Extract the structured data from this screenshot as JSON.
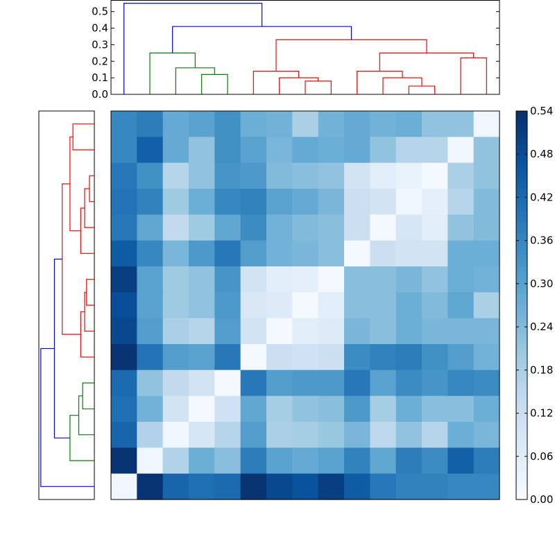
{
  "chart_data": [
    {
      "type": "heatmap",
      "colormap": "Blues",
      "colorbar": {
        "range": [
          0.0,
          0.54
        ],
        "tick_labels": [
          "0.00",
          "0.06",
          "0.12",
          "0.18",
          "0.24",
          "0.30",
          "0.36",
          "0.42",
          "0.48",
          "0.54"
        ],
        "ticks": [
          0.0,
          0.06,
          0.12,
          0.18,
          0.24,
          0.3,
          0.36,
          0.42,
          0.48,
          0.54
        ]
      },
      "grid": false,
      "rows_top_to_bottom": 15,
      "cols_left_to_right": 15,
      "values": [
        [
          0.36,
          0.38,
          0.28,
          0.3,
          0.34,
          0.27,
          0.26,
          0.18,
          0.26,
          0.28,
          0.26,
          0.27,
          0.22,
          0.22,
          0.02
        ],
        [
          0.36,
          0.44,
          0.28,
          0.22,
          0.34,
          0.3,
          0.25,
          0.28,
          0.27,
          0.28,
          0.22,
          0.16,
          0.16,
          0.02,
          0.22
        ],
        [
          0.39,
          0.34,
          0.16,
          0.22,
          0.33,
          0.32,
          0.24,
          0.23,
          0.22,
          0.1,
          0.06,
          0.04,
          0.01,
          0.18,
          0.22
        ],
        [
          0.4,
          0.37,
          0.2,
          0.27,
          0.36,
          0.37,
          0.3,
          0.28,
          0.25,
          0.12,
          0.1,
          0.02,
          0.05,
          0.16,
          0.24
        ],
        [
          0.39,
          0.29,
          0.14,
          0.2,
          0.29,
          0.35,
          0.26,
          0.24,
          0.23,
          0.12,
          0.01,
          0.09,
          0.06,
          0.22,
          0.24
        ],
        [
          0.45,
          0.36,
          0.25,
          0.32,
          0.39,
          0.31,
          0.26,
          0.25,
          0.23,
          0.01,
          0.12,
          0.1,
          0.1,
          0.27,
          0.27
        ],
        [
          0.51,
          0.3,
          0.2,
          0.22,
          0.33,
          0.1,
          0.06,
          0.05,
          0.01,
          0.23,
          0.23,
          0.25,
          0.22,
          0.27,
          0.26
        ],
        [
          0.48,
          0.3,
          0.2,
          0.22,
          0.32,
          0.08,
          0.07,
          0.01,
          0.06,
          0.23,
          0.23,
          0.27,
          0.24,
          0.29,
          0.18
        ],
        [
          0.49,
          0.31,
          0.18,
          0.16,
          0.31,
          0.1,
          0.01,
          0.06,
          0.07,
          0.25,
          0.23,
          0.27,
          0.25,
          0.25,
          0.25
        ],
        [
          0.53,
          0.4,
          0.31,
          0.3,
          0.39,
          0.01,
          0.12,
          0.11,
          0.12,
          0.35,
          0.37,
          0.38,
          0.34,
          0.31,
          0.26
        ],
        [
          0.42,
          0.22,
          0.14,
          0.1,
          0.01,
          0.39,
          0.31,
          0.32,
          0.32,
          0.39,
          0.3,
          0.35,
          0.33,
          0.36,
          0.35
        ],
        [
          0.41,
          0.26,
          0.1,
          0.01,
          0.11,
          0.29,
          0.19,
          0.22,
          0.23,
          0.32,
          0.19,
          0.27,
          0.23,
          0.23,
          0.27
        ],
        [
          0.43,
          0.17,
          0.02,
          0.09,
          0.16,
          0.31,
          0.18,
          0.19,
          0.21,
          0.25,
          0.15,
          0.22,
          0.16,
          0.27,
          0.25
        ],
        [
          0.53,
          0.02,
          0.17,
          0.27,
          0.23,
          0.38,
          0.3,
          0.28,
          0.3,
          0.37,
          0.29,
          0.38,
          0.35,
          0.44,
          0.38
        ],
        [
          0.02,
          0.53,
          0.43,
          0.41,
          0.42,
          0.53,
          0.49,
          0.47,
          0.51,
          0.45,
          0.39,
          0.37,
          0.37,
          0.36,
          0.36
        ]
      ]
    },
    {
      "type": "dendrogram",
      "orientation": "top",
      "ylim": [
        0.0,
        0.57
      ],
      "ytick_labels": [
        "0.0",
        "0.1",
        "0.2",
        "0.3",
        "0.4",
        "0.5"
      ],
      "yticks": [
        0.0,
        0.1,
        0.2,
        0.3,
        0.4,
        0.5
      ],
      "leaves": 15,
      "links": [
        {
          "c": [
            "l3",
            "l4"
          ],
          "h": 0.12,
          "color": "#008000"
        },
        {
          "c": [
            "l2",
            "n1"
          ],
          "h": 0.16,
          "color": "#008000"
        },
        {
          "c": [
            "l1",
            "n2"
          ],
          "h": 0.25,
          "color": "#008000"
        },
        {
          "c": [
            "l7",
            "l8"
          ],
          "h": 0.08,
          "color": "#ff0000"
        },
        {
          "c": [
            "l6",
            "n4"
          ],
          "h": 0.1,
          "color": "#ff0000"
        },
        {
          "c": [
            "l5",
            "n5"
          ],
          "h": 0.14,
          "color": "#ff0000"
        },
        {
          "c": [
            "l11",
            "l12"
          ],
          "h": 0.05,
          "color": "#ff0000"
        },
        {
          "c": [
            "l10",
            "n7"
          ],
          "h": 0.1,
          "color": "#ff0000"
        },
        {
          "c": [
            "l9",
            "n8"
          ],
          "h": 0.14,
          "color": "#ff0000"
        },
        {
          "c": [
            "l13",
            "l14"
          ],
          "h": 0.22,
          "color": "#ff0000"
        },
        {
          "c": [
            "n9",
            "n10"
          ],
          "h": 0.25,
          "color": "#ff0000"
        },
        {
          "c": [
            "n6",
            "n11"
          ],
          "h": 0.33,
          "color": "#ff0000"
        },
        {
          "c": [
            "n3",
            "n12"
          ],
          "h": 0.41,
          "color": "#0000ff"
        },
        {
          "c": [
            "l0",
            "n13"
          ],
          "h": 0.55,
          "color": "#0000ff"
        }
      ]
    },
    {
      "type": "dendrogram",
      "orientation": "left",
      "ticks_shown": false,
      "leaves": 15,
      "links": [
        {
          "c": [
            "l3",
            "l4"
          ],
          "h": 0.12,
          "color": "#008000"
        },
        {
          "c": [
            "l2",
            "n1"
          ],
          "h": 0.16,
          "color": "#008000"
        },
        {
          "c": [
            "l1",
            "n2"
          ],
          "h": 0.25,
          "color": "#008000"
        },
        {
          "c": [
            "l7",
            "l8"
          ],
          "h": 0.08,
          "color": "#ff0000"
        },
        {
          "c": [
            "l6",
            "n4"
          ],
          "h": 0.1,
          "color": "#ff0000"
        },
        {
          "c": [
            "l5",
            "n5"
          ],
          "h": 0.14,
          "color": "#ff0000"
        },
        {
          "c": [
            "l11",
            "l12"
          ],
          "h": 0.05,
          "color": "#ff0000"
        },
        {
          "c": [
            "l10",
            "n7"
          ],
          "h": 0.1,
          "color": "#ff0000"
        },
        {
          "c": [
            "l9",
            "n8"
          ],
          "h": 0.14,
          "color": "#ff0000"
        },
        {
          "c": [
            "l13",
            "l14"
          ],
          "h": 0.22,
          "color": "#ff0000"
        },
        {
          "c": [
            "n9",
            "n10"
          ],
          "h": 0.25,
          "color": "#ff0000"
        },
        {
          "c": [
            "n6",
            "n11"
          ],
          "h": 0.33,
          "color": "#ff0000"
        },
        {
          "c": [
            "n3",
            "n12"
          ],
          "h": 0.41,
          "color": "#0000ff"
        },
        {
          "c": [
            "l0",
            "n13"
          ],
          "h": 0.55,
          "color": "#0000ff"
        }
      ]
    }
  ]
}
